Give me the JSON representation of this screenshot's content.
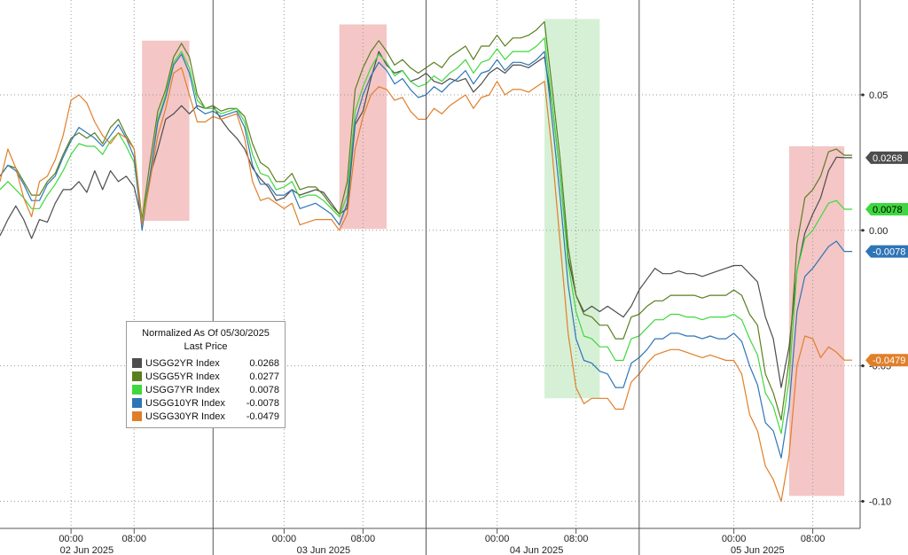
{
  "chart_data": {
    "type": "line",
    "legend": {
      "title": "Normalized As Of 05/30/2025",
      "subtitle": "Last Price",
      "placement": "bottom-left"
    },
    "y_ticks": [
      {
        "value": 0.05,
        "label": "0.05"
      },
      {
        "value": 0.0,
        "label": "0.00"
      },
      {
        "value": -0.05,
        "label": "-0.05"
      },
      {
        "value": -0.1,
        "label": "-0.10"
      }
    ],
    "ylim": [
      -0.11,
      0.085
    ],
    "xlim": [
      0,
      109
    ],
    "hour_ticks": [
      {
        "x": 9,
        "label": "00:00"
      },
      {
        "x": 17,
        "label": "08:00"
      },
      {
        "x": 36,
        "label": "00:00"
      },
      {
        "x": 46,
        "label": "08:00"
      },
      {
        "x": 63,
        "label": "00:00"
      },
      {
        "x": 73,
        "label": "08:00"
      },
      {
        "x": 93,
        "label": "00:00"
      },
      {
        "x": 103,
        "label": "08:00"
      }
    ],
    "day_labels": [
      {
        "x": 11,
        "label": "02 Jun 2025"
      },
      {
        "x": 41,
        "label": "03 Jun 2025"
      },
      {
        "x": 68,
        "label": "04 Jun 2025"
      },
      {
        "x": 96,
        "label": "05 Jun 2025"
      }
    ],
    "day_separators": [
      27,
      54,
      81
    ],
    "shaded_regions": [
      {
        "x0": 18,
        "x1": 24,
        "y0": 0.0035,
        "y1": 0.07,
        "color": "#f4c6c6"
      },
      {
        "x0": 43,
        "x1": 49,
        "y0": 0.0005,
        "y1": 0.076,
        "color": "#f4c6c6"
      },
      {
        "x0": 69,
        "x1": 76,
        "y0": -0.062,
        "y1": 0.078,
        "color": "#d6f0d6"
      },
      {
        "x0": 100,
        "x1": 107,
        "y0": -0.098,
        "y1": 0.031,
        "color": "#f4c6c6"
      }
    ],
    "x": [
      0,
      1,
      2,
      3,
      4,
      5,
      6,
      7,
      8,
      9,
      10,
      11,
      12,
      13,
      14,
      15,
      16,
      17,
      18,
      19,
      20,
      21,
      22,
      23,
      24,
      25,
      26,
      27,
      28,
      29,
      30,
      31,
      32,
      33,
      34,
      35,
      36,
      37,
      38,
      39,
      40,
      41,
      42,
      43,
      44,
      45,
      46,
      47,
      48,
      49,
      50,
      51,
      52,
      53,
      54,
      55,
      56,
      57,
      58,
      59,
      60,
      61,
      62,
      63,
      64,
      65,
      66,
      67,
      68,
      69,
      70,
      71,
      72,
      73,
      74,
      75,
      76,
      77,
      78,
      79,
      80,
      81,
      82,
      83,
      84,
      85,
      86,
      87,
      88,
      89,
      90,
      91,
      92,
      93,
      94,
      95,
      96,
      97,
      98,
      99,
      100,
      101,
      102,
      103,
      104,
      105,
      106,
      107,
      108
    ],
    "series": [
      {
        "name": "USGG2YR Index",
        "color": "#4d4d4d",
        "last_price": 0.0268,
        "label": "0.0268",
        "values": [
          -0.002,
          0.004,
          0.009,
          0.004,
          -0.003,
          0.004,
          0.003,
          0.01,
          0.015,
          0.015,
          0.018,
          0.014,
          0.022,
          0.015,
          0.022,
          0.018,
          0.02,
          0.016,
          0.0035,
          0.02,
          0.03,
          0.041,
          0.043,
          0.046,
          0.043,
          0.046,
          0.045,
          0.046,
          0.041,
          0.037,
          0.034,
          0.03,
          0.023,
          0.019,
          0.016,
          0.011,
          0.012,
          0.015,
          0.013,
          0.014,
          0.015,
          0.014,
          0.01,
          0.006,
          0.008,
          0.039,
          0.044,
          0.056,
          0.066,
          0.061,
          0.058,
          0.059,
          0.055,
          0.056,
          0.058,
          0.055,
          0.054,
          0.056,
          0.055,
          0.056,
          0.051,
          0.054,
          0.058,
          0.06,
          0.058,
          0.061,
          0.061,
          0.06,
          0.062,
          0.064,
          0.046,
          0.02,
          -0.01,
          -0.024,
          -0.03,
          -0.028,
          -0.03,
          -0.028,
          -0.03,
          -0.032,
          -0.028,
          -0.022,
          -0.018,
          -0.014,
          -0.016,
          -0.016,
          -0.015,
          -0.016,
          -0.016,
          -0.017,
          -0.016,
          -0.015,
          -0.014,
          -0.013,
          -0.013,
          -0.016,
          -0.019,
          -0.032,
          -0.04,
          -0.058,
          -0.043,
          -0.015,
          -0.001,
          0.006,
          0.012,
          0.022,
          0.027,
          0.0268,
          0.0268
        ]
      },
      {
        "name": "USGG5YR Index",
        "color": "#5a7f1f",
        "last_price": 0.0277,
        "label": "0.0277",
        "values": [
          0.02,
          0.024,
          0.023,
          0.018,
          0.013,
          0.013,
          0.018,
          0.021,
          0.028,
          0.034,
          0.036,
          0.034,
          0.036,
          0.032,
          0.038,
          0.041,
          0.035,
          0.03,
          0.004,
          0.025,
          0.044,
          0.052,
          0.064,
          0.069,
          0.064,
          0.05,
          0.045,
          0.046,
          0.044,
          0.045,
          0.045,
          0.042,
          0.032,
          0.025,
          0.023,
          0.018,
          0.018,
          0.021,
          0.015,
          0.016,
          0.016,
          0.013,
          0.009,
          0.006,
          0.018,
          0.052,
          0.06,
          0.066,
          0.07,
          0.066,
          0.061,
          0.063,
          0.06,
          0.058,
          0.06,
          0.062,
          0.06,
          0.064,
          0.066,
          0.068,
          0.063,
          0.068,
          0.068,
          0.072,
          0.068,
          0.071,
          0.071,
          0.072,
          0.074,
          0.077,
          0.052,
          0.026,
          -0.006,
          -0.024,
          -0.031,
          -0.032,
          -0.035,
          -0.035,
          -0.04,
          -0.04,
          -0.032,
          -0.031,
          -0.028,
          -0.026,
          -0.026,
          -0.024,
          -0.024,
          -0.024,
          -0.024,
          -0.025,
          -0.024,
          -0.024,
          -0.024,
          -0.022,
          -0.024,
          -0.031,
          -0.035,
          -0.053,
          -0.06,
          -0.07,
          -0.048,
          -0.005,
          0.012,
          0.015,
          0.02,
          0.029,
          0.03,
          0.0277,
          0.0277
        ]
      },
      {
        "name": "USGG7YR Index",
        "color": "#3ed83e",
        "last_price": 0.0078,
        "label": "0.0078",
        "values": [
          0.015,
          0.018,
          0.015,
          0.012,
          0.008,
          0.008,
          0.013,
          0.017,
          0.022,
          0.028,
          0.032,
          0.031,
          0.031,
          0.028,
          0.033,
          0.036,
          0.031,
          0.025,
          0.003,
          0.02,
          0.041,
          0.05,
          0.062,
          0.066,
          0.06,
          0.048,
          0.045,
          0.045,
          0.043,
          0.044,
          0.045,
          0.04,
          0.028,
          0.021,
          0.02,
          0.015,
          0.016,
          0.018,
          0.012,
          0.013,
          0.013,
          0.011,
          0.008,
          0.005,
          0.013,
          0.044,
          0.053,
          0.06,
          0.065,
          0.062,
          0.057,
          0.059,
          0.055,
          0.053,
          0.054,
          0.057,
          0.055,
          0.058,
          0.06,
          0.063,
          0.058,
          0.062,
          0.063,
          0.067,
          0.063,
          0.066,
          0.066,
          0.066,
          0.068,
          0.071,
          0.046,
          0.02,
          -0.012,
          -0.03,
          -0.039,
          -0.04,
          -0.043,
          -0.043,
          -0.048,
          -0.048,
          -0.04,
          -0.039,
          -0.036,
          -0.033,
          -0.033,
          -0.031,
          -0.031,
          -0.032,
          -0.032,
          -0.033,
          -0.032,
          -0.032,
          -0.032,
          -0.031,
          -0.033,
          -0.04,
          -0.046,
          -0.06,
          -0.065,
          -0.075,
          -0.055,
          -0.015,
          -0.003,
          0.0,
          0.005,
          0.01,
          0.011,
          0.0078,
          0.0078
        ]
      },
      {
        "name": "USGG10YR Index",
        "color": "#2e75b6",
        "last_price": -0.0078,
        "label": "-0.0078",
        "values": [
          0.02,
          0.024,
          0.022,
          0.017,
          0.011,
          0.011,
          0.017,
          0.02,
          0.027,
          0.033,
          0.038,
          0.036,
          0.034,
          0.031,
          0.035,
          0.039,
          0.034,
          0.027,
          0.0,
          0.02,
          0.04,
          0.049,
          0.061,
          0.065,
          0.058,
          0.045,
          0.043,
          0.044,
          0.042,
          0.043,
          0.044,
          0.038,
          0.024,
          0.017,
          0.017,
          0.013,
          0.013,
          0.015,
          0.008,
          0.009,
          0.01,
          0.008,
          0.006,
          0.002,
          0.01,
          0.04,
          0.05,
          0.057,
          0.062,
          0.059,
          0.054,
          0.056,
          0.052,
          0.049,
          0.05,
          0.053,
          0.051,
          0.054,
          0.056,
          0.059,
          0.054,
          0.058,
          0.059,
          0.063,
          0.059,
          0.062,
          0.062,
          0.061,
          0.063,
          0.066,
          0.04,
          0.012,
          -0.02,
          -0.04,
          -0.048,
          -0.049,
          -0.052,
          -0.053,
          -0.058,
          -0.058,
          -0.049,
          -0.047,
          -0.044,
          -0.04,
          -0.04,
          -0.038,
          -0.038,
          -0.039,
          -0.039,
          -0.04,
          -0.039,
          -0.04,
          -0.04,
          -0.038,
          -0.041,
          -0.05,
          -0.057,
          -0.071,
          -0.074,
          -0.084,
          -0.065,
          -0.03,
          -0.017,
          -0.014,
          -0.01,
          -0.006,
          -0.004,
          -0.0078,
          -0.0078
        ]
      },
      {
        "name": "USGG30YR Index",
        "color": "#e07f2a",
        "last_price": -0.0479,
        "label": "-0.0479",
        "values": [
          0.018,
          0.03,
          0.023,
          0.012,
          0.005,
          0.018,
          0.02,
          0.026,
          0.035,
          0.048,
          0.05,
          0.047,
          0.04,
          0.035,
          0.032,
          0.036,
          0.034,
          0.03,
          0.002,
          0.018,
          0.035,
          0.045,
          0.058,
          0.06,
          0.05,
          0.04,
          0.04,
          0.042,
          0.041,
          0.042,
          0.043,
          0.034,
          0.018,
          0.011,
          0.012,
          0.01,
          0.008,
          0.01,
          0.002,
          0.003,
          0.004,
          0.004,
          0.004,
          0.0,
          0.006,
          0.03,
          0.042,
          0.05,
          0.053,
          0.052,
          0.048,
          0.049,
          0.044,
          0.041,
          0.041,
          0.045,
          0.043,
          0.046,
          0.048,
          0.05,
          0.045,
          0.049,
          0.05,
          0.055,
          0.05,
          0.052,
          0.052,
          0.051,
          0.053,
          0.055,
          0.028,
          -0.005,
          -0.038,
          -0.058,
          -0.064,
          -0.062,
          -0.062,
          -0.062,
          -0.066,
          -0.066,
          -0.056,
          -0.053,
          -0.049,
          -0.046,
          -0.045,
          -0.044,
          -0.044,
          -0.045,
          -0.046,
          -0.047,
          -0.046,
          -0.047,
          -0.048,
          -0.048,
          -0.053,
          -0.068,
          -0.074,
          -0.087,
          -0.092,
          -0.1,
          -0.083,
          -0.05,
          -0.039,
          -0.04,
          -0.047,
          -0.043,
          -0.045,
          -0.0479,
          -0.0479
        ]
      }
    ]
  }
}
